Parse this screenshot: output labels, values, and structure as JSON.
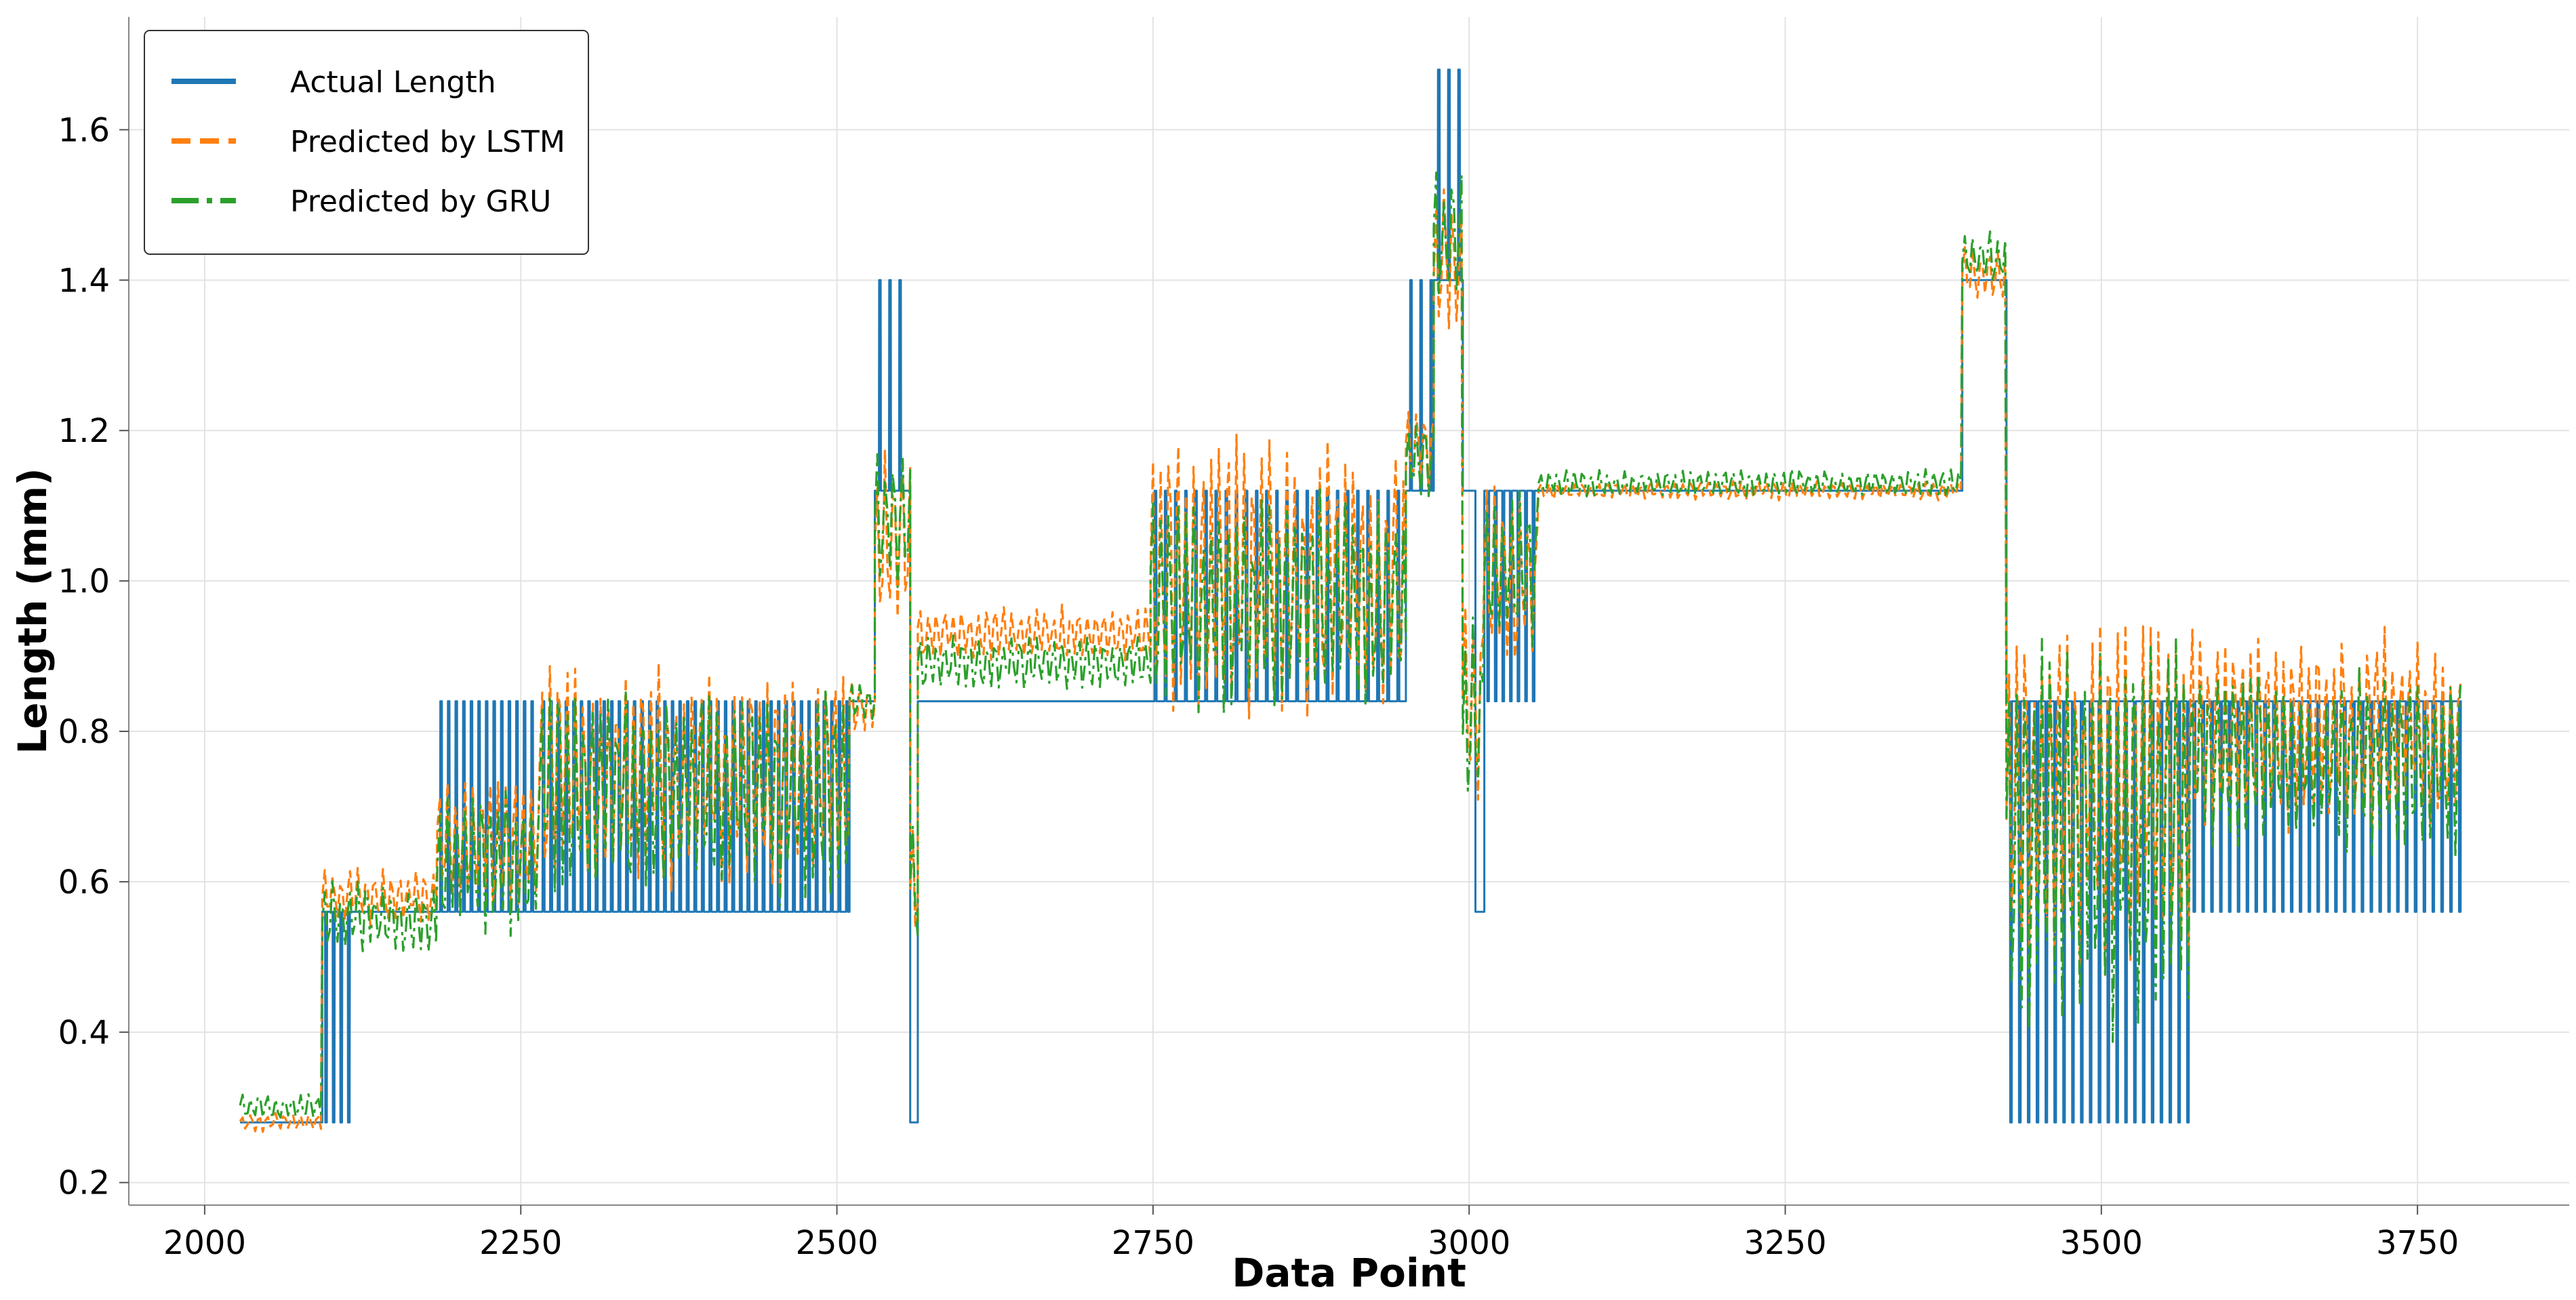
{
  "chart_data": {
    "type": "line",
    "title": "",
    "xlabel": "Data Point",
    "ylabel": "Length (mm)",
    "xlim": [
      1940,
      3870
    ],
    "ylim": [
      0.17,
      1.75
    ],
    "xticks": [
      2000,
      2250,
      2500,
      2750,
      3000,
      3250,
      3500,
      3750
    ],
    "yticks": [
      0.2,
      0.4,
      0.6,
      0.8,
      1.0,
      1.2,
      1.4,
      1.6
    ],
    "xtick_labels": [
      "2000",
      "2250",
      "2500",
      "2750",
      "3000",
      "3250",
      "3500",
      "3750"
    ],
    "ytick_labels": [
      "0.2",
      "0.4",
      "0.6",
      "0.8",
      "1.0",
      "1.2",
      "1.4",
      "1.6"
    ],
    "grid": true,
    "legend_position": "top-left",
    "x_range": [
      2028,
      3785
    ],
    "series": [
      {
        "name": "Actual Length",
        "color": "#1f77b4",
        "style": "solid",
        "segments": [
          {
            "x": [
              2028,
              2093
            ],
            "base": 0.28,
            "spike": 0.28,
            "period": 0
          },
          {
            "x": [
              2093,
              2118
            ],
            "base": 0.56,
            "spike": 0.28,
            "period": 6
          },
          {
            "x": [
              2118,
              2184
            ],
            "base": 0.56,
            "spike": 0.56,
            "period": 0
          },
          {
            "x": [
              2184,
              2265
            ],
            "base": 0.56,
            "spike": 0.84,
            "period": 6
          },
          {
            "x": [
              2265,
              2510
            ],
            "base": 0.56,
            "spike": 0.84,
            "period": 6
          },
          {
            "x": [
              2510,
              2530
            ],
            "base": 0.84,
            "spike": 0.84,
            "period": 0
          },
          {
            "x": [
              2530,
              2558
            ],
            "base": 1.12,
            "spike": 1.4,
            "period": 8
          },
          {
            "x": [
              2558,
              2564
            ],
            "base": 0.28,
            "spike": 0.28,
            "period": 0
          },
          {
            "x": [
              2564,
              2748
            ],
            "base": 0.84,
            "spike": 0.84,
            "period": 0
          },
          {
            "x": [
              2748,
              2950
            ],
            "base": 0.84,
            "spike": 1.12,
            "period": 8
          },
          {
            "x": [
              2950,
              2972
            ],
            "base": 1.12,
            "spike": 1.4,
            "period": 8
          },
          {
            "x": [
              2972,
              2995
            ],
            "base": 1.4,
            "spike": 1.68,
            "period": 8
          },
          {
            "x": [
              2995,
              3005
            ],
            "base": 1.12,
            "spike": 1.12,
            "period": 0
          },
          {
            "x": [
              3005,
              3012
            ],
            "base": 0.56,
            "spike": 0.56,
            "period": 0
          },
          {
            "x": [
              3012,
              3055
            ],
            "base": 1.12,
            "spike": 0.84,
            "period": 6
          },
          {
            "x": [
              3055,
              3390
            ],
            "base": 1.12,
            "spike": 1.12,
            "period": 0
          },
          {
            "x": [
              3390,
              3425
            ],
            "base": 1.4,
            "spike": 1.4,
            "period": 0
          },
          {
            "x": [
              3425,
              3570
            ],
            "base": 0.84,
            "spike": 0.28,
            "period": 7
          },
          {
            "x": [
              3570,
              3785
            ],
            "base": 0.84,
            "spike": 0.56,
            "period": 7
          }
        ]
      },
      {
        "name": "Predicted by LSTM",
        "color": "#ff7f0e",
        "style": "dashed",
        "segments": [
          {
            "x": [
              2028,
              2093
            ],
            "level": 0.28,
            "amp": 0.01
          },
          {
            "x": [
              2093,
              2184
            ],
            "level": 0.58,
            "amp": 0.03
          },
          {
            "x": [
              2184,
              2265
            ],
            "level": 0.65,
            "amp": 0.08
          },
          {
            "x": [
              2265,
              2510
            ],
            "level": 0.74,
            "amp": 0.12
          },
          {
            "x": [
              2510,
              2530
            ],
            "level": 0.83,
            "amp": 0.03
          },
          {
            "x": [
              2530,
              2558
            ],
            "level": 1.05,
            "amp": 0.1
          },
          {
            "x": [
              2558,
              2564
            ],
            "level": 0.6,
            "amp": 0.1
          },
          {
            "x": [
              2564,
              2748
            ],
            "level": 0.93,
            "amp": 0.03
          },
          {
            "x": [
              2748,
              2950
            ],
            "level": 1.0,
            "amp": 0.16
          },
          {
            "x": [
              2950,
              2972
            ],
            "level": 1.18,
            "amp": 0.05
          },
          {
            "x": [
              2972,
              2995
            ],
            "level": 1.42,
            "amp": 0.08
          },
          {
            "x": [
              2995,
              3012
            ],
            "level": 0.85,
            "amp": 0.12
          },
          {
            "x": [
              3012,
              3055
            ],
            "level": 1.0,
            "amp": 0.1
          },
          {
            "x": [
              3055,
              3390
            ],
            "level": 1.12,
            "amp": 0.01
          },
          {
            "x": [
              3390,
              3425
            ],
            "level": 1.41,
            "amp": 0.03
          },
          {
            "x": [
              3425,
              3570
            ],
            "level": 0.72,
            "amp": 0.2
          },
          {
            "x": [
              3570,
              3785
            ],
            "level": 0.8,
            "amp": 0.11
          }
        ]
      },
      {
        "name": "Predicted by GRU",
        "color": "#2ca02c",
        "style": "dashdot",
        "segments": [
          {
            "x": [
              2028,
              2093
            ],
            "level": 0.3,
            "amp": 0.015
          },
          {
            "x": [
              2093,
              2184
            ],
            "level": 0.55,
            "amp": 0.04
          },
          {
            "x": [
              2184,
              2265
            ],
            "level": 0.63,
            "amp": 0.08
          },
          {
            "x": [
              2265,
              2510
            ],
            "level": 0.72,
            "amp": 0.12
          },
          {
            "x": [
              2510,
              2530
            ],
            "level": 0.84,
            "amp": 0.02
          },
          {
            "x": [
              2530,
              2558
            ],
            "level": 1.08,
            "amp": 0.08
          },
          {
            "x": [
              2558,
              2564
            ],
            "level": 0.6,
            "amp": 0.1
          },
          {
            "x": [
              2564,
              2748
            ],
            "level": 0.89,
            "amp": 0.03
          },
          {
            "x": [
              2748,
              2950
            ],
            "level": 0.97,
            "amp": 0.12
          },
          {
            "x": [
              2950,
              2972
            ],
            "level": 1.16,
            "amp": 0.04
          },
          {
            "x": [
              2972,
              2995
            ],
            "level": 1.45,
            "amp": 0.08
          },
          {
            "x": [
              2995,
              3012
            ],
            "level": 0.82,
            "amp": 0.12
          },
          {
            "x": [
              3012,
              3055
            ],
            "level": 1.02,
            "amp": 0.1
          },
          {
            "x": [
              3055,
              3390
            ],
            "level": 1.13,
            "amp": 0.015
          },
          {
            "x": [
              3390,
              3425
            ],
            "level": 1.43,
            "amp": 0.03
          },
          {
            "x": [
              3425,
              3570
            ],
            "level": 0.66,
            "amp": 0.22
          },
          {
            "x": [
              3570,
              3785
            ],
            "level": 0.76,
            "amp": 0.1
          }
        ]
      }
    ]
  }
}
